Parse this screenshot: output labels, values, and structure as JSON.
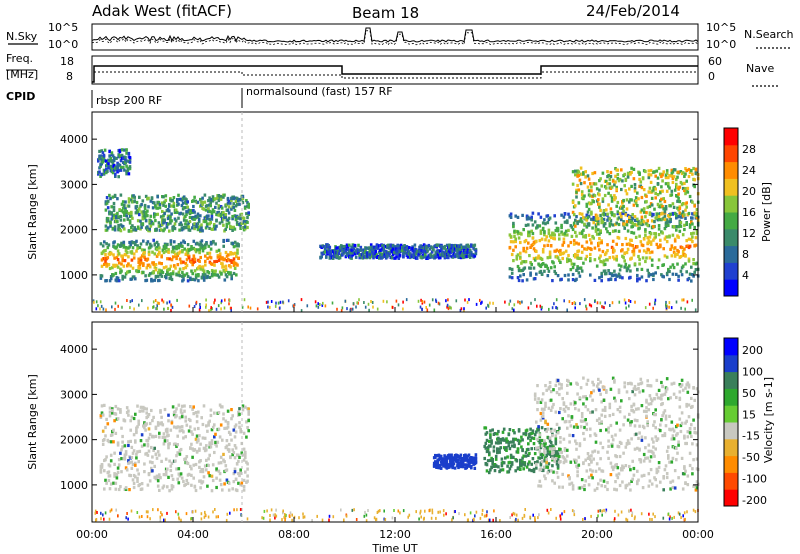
{
  "header": {
    "title": "Adak West (fitACF)",
    "beam": "Beam 18",
    "date": "24/Feb/2014"
  },
  "status_panels": {
    "nsky_label": "N.Sky",
    "nsearch_label": "N.Search",
    "freq_label_line1": "Freq.",
    "freq_label_line2": "[MHz]",
    "nave_label": "Nave",
    "cpid_label": "CPID",
    "noise_left_ticks": [
      "10^5",
      "10^0"
    ],
    "noise_right_ticks": [
      "10^5",
      "10^0"
    ],
    "freq_left_ticks": [
      "18",
      "8"
    ],
    "freq_right_ticks": [
      "60",
      "0"
    ],
    "cpid_segments": [
      {
        "label": "rbsp 200 RF",
        "start_hour": 0
      },
      {
        "label": "normalsound (fast) 157 RF",
        "start_hour": 6
      }
    ]
  },
  "colors": {
    "power_scale": [
      "#0000ff",
      "#2040d0",
      "#2a6a9a",
      "#3a8a6a",
      "#44aa44",
      "#88c63a",
      "#f0c020",
      "#ff8c00",
      "#ff4500",
      "#ff0000"
    ],
    "velocity_scale": [
      "#0000ff",
      "#1a3ecb",
      "#3a7f5a",
      "#2ea82e",
      "#66cc33",
      "#c8c8c0",
      "#e8b030",
      "#ff8c00",
      "#ff4a00",
      "#ff0000"
    ]
  },
  "chart_data": [
    {
      "type": "heatmap",
      "name": "power",
      "xlabel": "",
      "ylabel": "Slant Range [km]",
      "colorbar_label": "Power [dB]",
      "colorbar_ticks": [
        4,
        8,
        12,
        16,
        20,
        24,
        28
      ],
      "ylim": [
        180,
        4600
      ],
      "yticks": [
        1000,
        2000,
        3000,
        4000
      ],
      "xlim": [
        0,
        24
      ],
      "regions": [
        {
          "t0": 0.3,
          "t1": 5.8,
          "r_low": 900,
          "r_high": 1800,
          "level": 28
        },
        {
          "t0": 0.5,
          "t1": 6.2,
          "r_low": 2000,
          "r_high": 2800,
          "level": 12
        },
        {
          "t0": 0.2,
          "t1": 1.5,
          "r_low": 3200,
          "r_high": 3800,
          "level": 8
        },
        {
          "t0": 9.0,
          "t1": 15.2,
          "r_low": 1400,
          "r_high": 1700,
          "level": 6
        },
        {
          "t0": 16.5,
          "t1": 24,
          "r_low": 900,
          "r_high": 2400,
          "level": 26
        },
        {
          "t0": 19.0,
          "t1": 24,
          "r_low": 2100,
          "r_high": 3400,
          "level": 18
        }
      ]
    },
    {
      "type": "heatmap",
      "name": "velocity",
      "xlabel": "Time UT",
      "ylabel": "Slant Range [km]",
      "colorbar_label": "Velocity [m s-1]",
      "colorbar_ticks": [
        -200,
        -100,
        -50,
        -15,
        15,
        50,
        100,
        200
      ],
      "ylim": [
        180,
        4600
      ],
      "yticks": [
        1000,
        2000,
        3000,
        4000
      ],
      "xlim": [
        0,
        24
      ],
      "xticks": [
        "00:00",
        "04:00",
        "08:00",
        "12:00",
        "16:00",
        "20:00",
        "00:00"
      ],
      "regions": [
        {
          "t0": 0.3,
          "t1": 6.2,
          "r_low": 900,
          "r_high": 2800,
          "velocity": 0
        },
        {
          "t0": 13.5,
          "t1": 15.2,
          "r_low": 1400,
          "r_high": 1700,
          "velocity": 120
        },
        {
          "t0": 15.5,
          "t1": 18.5,
          "r_low": 1300,
          "r_high": 2300,
          "velocity": 60
        },
        {
          "t0": 17.5,
          "t1": 24,
          "r_low": 900,
          "r_high": 3400,
          "velocity": 0
        }
      ]
    }
  ]
}
